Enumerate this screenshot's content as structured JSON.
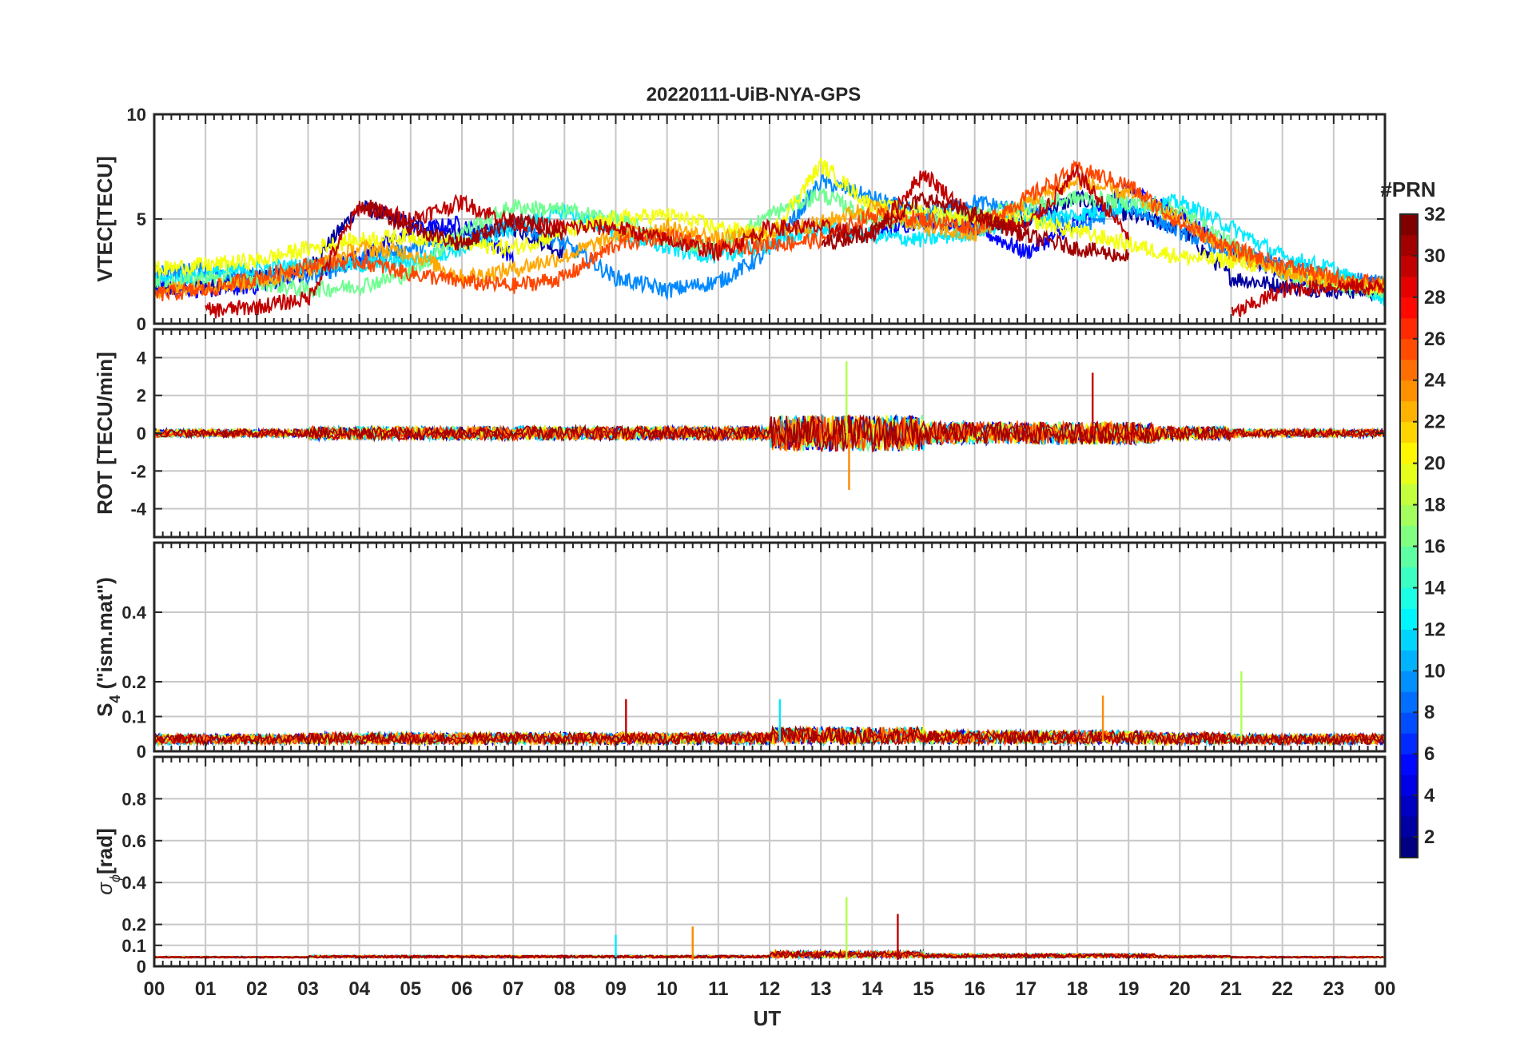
{
  "title": "20220111-UiB-NYA-GPS",
  "chart_data": [
    {
      "type": "line",
      "panel": "vtec",
      "ylabel": "VTEC[TECU]",
      "ylim": [
        0,
        10
      ],
      "yticks": [
        "0",
        "5",
        "10"
      ],
      "yticks_values": [
        0,
        5,
        10
      ],
      "grid": true,
      "series": [
        {
          "prn": 2,
          "values_hourly": [
            1.6,
            1.8,
            2.2,
            2.6,
            5.6,
            4.8,
            4.2,
            4.6,
            3.4,
            null,
            null,
            null,
            null,
            null,
            null,
            4.8,
            4.6,
            5.0,
            6.0,
            5.2,
            4.6,
            2.2,
            1.8,
            1.6,
            1.5
          ]
        },
        {
          "prn": 5,
          "values_hourly": [
            1.8,
            1.6,
            1.8,
            2.4,
            3.2,
            4.4,
            4.8,
            3.2,
            null,
            null,
            null,
            null,
            null,
            null,
            4.2,
            5.0,
            4.6,
            3.4,
            4.8,
            6.4,
            5.2,
            3.6,
            2.4,
            2.0,
            1.8
          ]
        },
        {
          "prn": 9,
          "values_hourly": [
            2.4,
            2.6,
            2.2,
            2.2,
            3.0,
            3.6,
            4.0,
            4.8,
            3.8,
            2.2,
            1.6,
            2.0,
            3.4,
            6.8,
            6.0,
            5.2,
            5.8,
            5.4,
            4.6,
            5.6,
            4.4,
            3.4,
            2.8,
            2.2,
            1.9
          ]
        },
        {
          "prn": 12,
          "values_hourly": [
            2.0,
            2.4,
            2.6,
            2.8,
            2.8,
            3.0,
            3.6,
            4.6,
            5.4,
            4.4,
            3.6,
            3.2,
            3.8,
            4.6,
            4.2,
            4.0,
            4.4,
            5.0,
            5.2,
            5.6,
            5.8,
            4.6,
            3.2,
            2.6,
            1.2
          ]
        },
        {
          "prn": 16,
          "values_hourly": [
            1.8,
            2.2,
            2.0,
            1.6,
            1.8,
            2.4,
            4.4,
            5.6,
            5.4,
            5.0,
            4.0,
            3.6,
            5.2,
            6.2,
            5.0,
            4.8,
            5.2,
            5.6,
            6.0,
            5.8,
            5.4,
            3.8,
            2.4,
            1.8,
            1.6
          ]
        },
        {
          "prn": 20,
          "values_hourly": [
            2.6,
            2.8,
            3.0,
            3.6,
            4.0,
            4.2,
            3.8,
            3.6,
            4.4,
            5.0,
            5.2,
            4.6,
            4.2,
            7.6,
            5.6,
            5.4,
            5.0,
            5.0,
            4.4,
            3.8,
            3.2,
            3.0,
            2.6,
            2.0,
            1.7
          ]
        },
        {
          "prn": 23,
          "values_hourly": [
            1.6,
            1.8,
            2.0,
            2.6,
            3.6,
            3.4,
            2.2,
            2.6,
            3.2,
            4.2,
            4.6,
            4.0,
            4.4,
            4.8,
            5.6,
            4.6,
            4.2,
            5.8,
            6.8,
            6.2,
            5.0,
            3.4,
            2.4,
            2.0,
            1.8
          ]
        },
        {
          "prn": 26,
          "values_hourly": [
            1.4,
            1.6,
            2.2,
            2.8,
            3.0,
            2.4,
            2.0,
            1.8,
            2.2,
            3.8,
            4.2,
            3.6,
            3.8,
            4.0,
            5.2,
            5.0,
            4.6,
            6.0,
            7.4,
            6.6,
            4.8,
            3.6,
            2.8,
            2.2,
            1.8
          ]
        },
        {
          "prn": 30,
          "values_hourly": [
            null,
            0.6,
            0.8,
            1.2,
            5.6,
            5.0,
            5.8,
            4.8,
            4.6,
            4.6,
            4.0,
            3.4,
            4.6,
            4.6,
            4.2,
            7.2,
            5.0,
            4.6,
            7.2,
            4.2,
            null,
            0.4,
            1.6,
            1.8,
            1.7
          ]
        },
        {
          "prn": 31,
          "values_hourly": [
            null,
            null,
            null,
            null,
            5.8,
            4.6,
            3.8,
            5.0,
            4.2,
            null,
            null,
            null,
            null,
            3.8,
            4.4,
            6.0,
            5.2,
            4.2,
            3.6,
            3.2,
            null,
            null,
            null,
            null,
            null
          ]
        }
      ]
    },
    {
      "type": "line",
      "panel": "rot",
      "ylabel": "ROT [TECU/min]",
      "ylim": [
        -5.5,
        5.5
      ],
      "yticks": [
        "-4",
        "-2",
        "0",
        "2",
        "4"
      ],
      "yticks_values": [
        -4,
        -2,
        0,
        2,
        4
      ],
      "grid": true,
      "note_peaks": [
        {
          "ut": 13.5,
          "value": 3.8
        },
        {
          "ut": 18.3,
          "value": 3.2
        },
        {
          "ut": 13.55,
          "value": -3.0
        }
      ]
    },
    {
      "type": "line",
      "panel": "s4",
      "ylabel": "S",
      "ylabel_sub": "4",
      "ylabel_suffix": " (\"ism.mat\")",
      "ylim": [
        0,
        0.6
      ],
      "yticks": [
        "0",
        "0.1",
        "0.2",
        "0.4"
      ],
      "yticks_values": [
        0,
        0.1,
        0.2,
        0.4
      ],
      "grid": true,
      "note_peaks": [
        {
          "ut": 21.2,
          "value": 0.23
        },
        {
          "ut": 9.2,
          "value": 0.15
        },
        {
          "ut": 18.5,
          "value": 0.16
        },
        {
          "ut": 12.2,
          "value": 0.15
        }
      ]
    },
    {
      "type": "line",
      "panel": "sigma_phi",
      "ylabel": "σ",
      "ylabel_sub": "ϕ",
      "ylabel_suffix": "[rad]",
      "ylim": [
        0,
        1.0
      ],
      "yticks": [
        "0",
        "0.1",
        "0.2",
        "0.4",
        "0.6",
        "0.8"
      ],
      "yticks_values": [
        0,
        0.1,
        0.2,
        0.4,
        0.6,
        0.8
      ],
      "grid": true,
      "note_peaks": [
        {
          "ut": 13.5,
          "value": 0.33
        },
        {
          "ut": 14.5,
          "value": 0.25
        },
        {
          "ut": 10.5,
          "value": 0.19
        },
        {
          "ut": 9.0,
          "value": 0.15
        }
      ]
    }
  ],
  "xaxis": {
    "label": "UT",
    "ticks": [
      "00",
      "01",
      "02",
      "03",
      "04",
      "05",
      "06",
      "07",
      "08",
      "09",
      "10",
      "11",
      "12",
      "13",
      "14",
      "15",
      "16",
      "17",
      "18",
      "19",
      "20",
      "21",
      "22",
      "23",
      "00"
    ]
  },
  "colorbar": {
    "title": "#PRN",
    "range": [
      1,
      32
    ],
    "ticks": [
      "2",
      "4",
      "6",
      "8",
      "10",
      "12",
      "14",
      "16",
      "18",
      "20",
      "22",
      "24",
      "26",
      "28",
      "30",
      "32"
    ],
    "tick_values": [
      2,
      4,
      6,
      8,
      10,
      12,
      14,
      16,
      18,
      20,
      22,
      24,
      26,
      28,
      30,
      32
    ],
    "colormap": "jet",
    "colors": [
      "#00008f",
      "#0000ff",
      "#0080ff",
      "#00ffff",
      "#80ff80",
      "#ffff00",
      "#ff8000",
      "#ff0000",
      "#800000"
    ]
  }
}
